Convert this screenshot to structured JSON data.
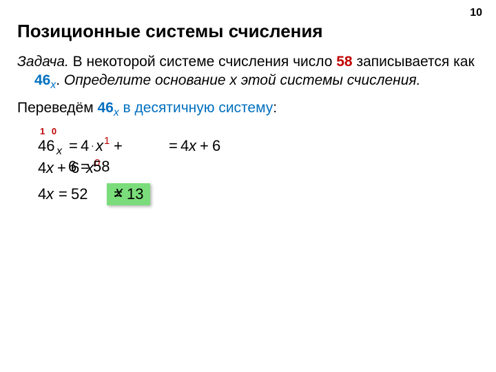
{
  "page_number": "10",
  "title": "Позиционные системы счисления",
  "task": {
    "label": "Задача.",
    "part1": " В некоторой системе счисления число ",
    "n58": "58",
    "part2": " записывается как ",
    "n46": "46",
    "subx": "x",
    "part3": ". ",
    "italic_part": "Определите основание x этой системы счисления."
  },
  "convert": {
    "part1": "Переведём ",
    "n46": "46",
    "subx": "x",
    "part2": " в десятичную систему",
    "colon": ":"
  },
  "digits": "1 0",
  "eq_line1": {
    "n46": "46",
    "subx": "x",
    "eq": "=",
    "four": "4",
    "dot": "·",
    "x": "x",
    "sup1": "1",
    "plus": "+",
    "eq2": "=",
    "four2": "4",
    "x2": "x",
    "plus2": "+",
    "six2": "6"
  },
  "eq_line2": {
    "four": "4",
    "x": "x",
    "plus": "+",
    "six_overlap": "6",
    "dot_overlap": "·",
    "x_overlap": "x",
    "sup0": "0",
    "six_main": "6",
    "eq": "=",
    "fiftyeight": "58"
  },
  "eq_line3": {
    "four": "4",
    "x": "x",
    "eq": "=",
    "fiftytwo": "52"
  },
  "answer": {
    "x": "x",
    "eq": " = ",
    "val": "13"
  },
  "colors": {
    "red": "#c00000",
    "blue": "#0070c0",
    "green_bg": "#7bdc7b"
  }
}
